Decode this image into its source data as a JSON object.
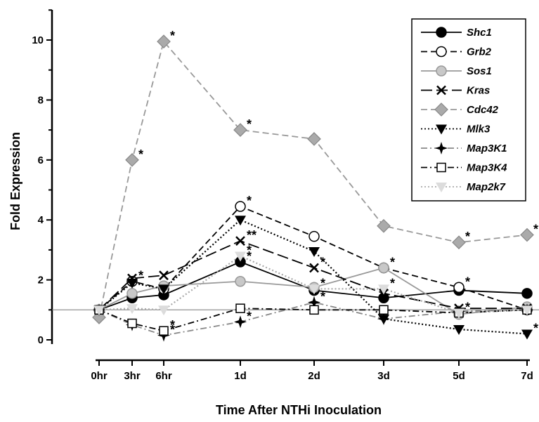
{
  "chart_data": {
    "type": "line",
    "title": "",
    "xlabel": "Time After NTHi Inoculation",
    "ylabel": "Fold Expression",
    "categories": [
      "0hr",
      "3hr",
      "6hr",
      "1d",
      "2d",
      "3d",
      "5d",
      "7d"
    ],
    "x": [
      0,
      3,
      6,
      24,
      48,
      72,
      120,
      168
    ],
    "ylim": [
      0,
      11
    ],
    "yticks": [
      0,
      2,
      4,
      6,
      8,
      10
    ],
    "baseline": 1,
    "grid": false,
    "legend_position": "top-right",
    "series": [
      {
        "name": "Shc1",
        "values": [
          1.0,
          1.4,
          1.5,
          2.6,
          1.65,
          1.4,
          1.65,
          1.55
        ],
        "color": "#000000",
        "dash": "solid",
        "marker": "circle-filled",
        "stars": [
          "",
          "",
          "",
          "*",
          "",
          "",
          "",
          ""
        ]
      },
      {
        "name": "Grb2",
        "values": [
          1.0,
          1.95,
          1.7,
          4.45,
          3.45,
          2.4,
          1.75,
          1.0
        ],
        "color": "#000000",
        "dash": "dashed",
        "marker": "circle-open",
        "stars": [
          "",
          "*",
          "",
          "*",
          "",
          "*",
          "*",
          ""
        ]
      },
      {
        "name": "Sos1",
        "values": [
          1.0,
          1.55,
          1.8,
          1.95,
          1.75,
          2.4,
          0.85,
          1.1
        ],
        "color": "#999999",
        "dash": "solid",
        "marker": "circle-gray",
        "stars": [
          "",
          "",
          "",
          "",
          "",
          "",
          "",
          ""
        ]
      },
      {
        "name": "Kras",
        "values": [
          1.0,
          2.05,
          2.15,
          3.3,
          2.4,
          1.55,
          1.05,
          1.05
        ],
        "color": "#000000",
        "dash": "longdash",
        "marker": "x",
        "stars": [
          "",
          "",
          "",
          "**",
          "*",
          "",
          "",
          ""
        ]
      },
      {
        "name": "Cdc42",
        "values": [
          0.75,
          6.0,
          9.95,
          7.0,
          6.7,
          3.8,
          3.25,
          3.5
        ],
        "color": "#999999",
        "dash": "dashed",
        "marker": "diamond",
        "stars": [
          "",
          "*",
          "*",
          "*",
          "",
          "",
          "*",
          "*"
        ]
      },
      {
        "name": "Mlk3",
        "values": [
          1.0,
          1.9,
          1.7,
          4.0,
          2.95,
          0.7,
          0.35,
          0.2
        ],
        "color": "#000000",
        "dash": "dotted",
        "marker": "triangle-down",
        "stars": [
          "",
          "",
          "",
          "",
          "",
          "",
          "",
          "*"
        ]
      },
      {
        "name": "Map3K1",
        "values": [
          1.0,
          0.5,
          0.15,
          0.6,
          1.25,
          0.7,
          0.95,
          1.0
        ],
        "color": "#888888",
        "dash": "dashdot",
        "marker": "star4",
        "stars": [
          "",
          "",
          "*",
          "*",
          "*",
          "",
          "",
          ""
        ]
      },
      {
        "name": "Map3K4",
        "values": [
          1.0,
          0.55,
          0.3,
          1.05,
          1.0,
          1.0,
          0.9,
          1.0
        ],
        "color": "#000000",
        "dash": "dashdot",
        "marker": "square-open",
        "stars": [
          "",
          "",
          "*",
          "",
          "",
          "",
          "*",
          ""
        ]
      },
      {
        "name": "Map2k7",
        "values": [
          1.0,
          1.05,
          1.0,
          2.8,
          1.7,
          1.7,
          0.9,
          1.0
        ],
        "color": "#aaaaaa",
        "dash": "dotted",
        "marker": "triangle-down-light",
        "stars": [
          "",
          "",
          "",
          "*",
          "*",
          "*",
          "",
          ""
        ]
      }
    ]
  }
}
